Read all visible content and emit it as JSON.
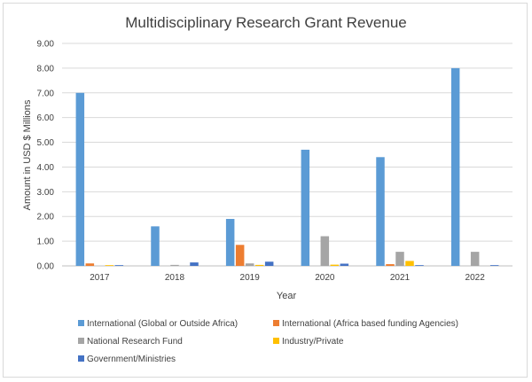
{
  "chart_data": {
    "type": "bar",
    "title": "Multidisciplinary Research Grant Revenue",
    "xlabel": "Year",
    "ylabel": "Amount in USD $ Millions",
    "ylim": [
      0,
      9
    ],
    "yticks": [
      "0.00",
      "1.00",
      "2.00",
      "3.00",
      "4.00",
      "5.00",
      "6.00",
      "7.00",
      "8.00",
      "9.00"
    ],
    "grid": true,
    "legend_position": "bottom",
    "categories": [
      "2017",
      "2018",
      "2019",
      "2020",
      "2021",
      "2022"
    ],
    "series": [
      {
        "name": "International (Global or Outside Africa)",
        "color": "#5b9bd5",
        "values": [
          7.0,
          1.6,
          1.9,
          4.7,
          4.4,
          8.0
        ]
      },
      {
        "name": "International (Africa based funding Agencies)",
        "color": "#ed7d31",
        "values": [
          0.1,
          0.0,
          0.85,
          0.0,
          0.07,
          0.0
        ]
      },
      {
        "name": "National Research Fund",
        "color": "#a5a5a5",
        "values": [
          0.0,
          0.04,
          0.1,
          1.2,
          0.57,
          0.57
        ]
      },
      {
        "name": "Industry/Private",
        "color": "#ffc000",
        "values": [
          0.03,
          0.0,
          0.04,
          0.05,
          0.2,
          0.0
        ]
      },
      {
        "name": "Government/Ministries",
        "color": "#4472c4",
        "values": [
          0.03,
          0.14,
          0.17,
          0.09,
          0.03,
          0.03
        ]
      }
    ]
  }
}
